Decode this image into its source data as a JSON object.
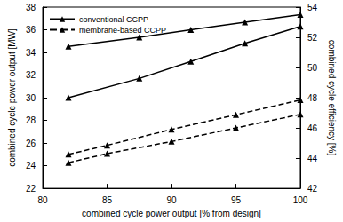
{
  "chart_data": {
    "type": "line",
    "x_label": "combined cycle power output [% from design]",
    "y_label": "combined cycle power output [MW]",
    "y2_label": "combined cycle efficiency [%]",
    "xlim": [
      80,
      100
    ],
    "xticks": [
      80,
      85,
      90,
      95,
      100
    ],
    "ylim": [
      22,
      38
    ],
    "yticks": [
      22,
      24,
      26,
      28,
      30,
      32,
      34,
      36,
      38
    ],
    "y2lim": [
      42,
      54
    ],
    "y2ticks": [
      42,
      44,
      46,
      48,
      50,
      52,
      54
    ],
    "grid": false,
    "legend": "upper left",
    "series": [
      {
        "name": "conventional CCPP",
        "color": "#000000",
        "marker": "triangle",
        "line_style": "solid",
        "x": [
          82,
          87.5,
          91.5,
          95.7,
          100
        ],
        "values": [
          30.0,
          31.7,
          33.2,
          34.8,
          36.3
        ]
      },
      {
        "name": "conventional CCPP",
        "color": "#000000",
        "marker": "triangle",
        "line_style": "solid",
        "axis": "y2",
        "x": [
          82,
          87.5,
          91.5,
          95.7,
          100
        ],
        "values": [
          51.4,
          52.0,
          52.5,
          53.0,
          53.5
        ]
      },
      {
        "name": "membrane-based CCPP",
        "color": "#000000",
        "marker": "triangle",
        "line_style": "dashed",
        "x": [
          82,
          85,
          90,
          95,
          100
        ],
        "values": [
          25.0,
          25.8,
          27.2,
          28.5,
          29.8
        ]
      },
      {
        "name": "membrane-based CCPP",
        "color": "#000000",
        "marker": "triangle",
        "line_style": "dashed",
        "axis": "y2",
        "x": [
          82,
          85,
          90,
          95,
          100
        ],
        "values": [
          43.7,
          44.3,
          45.1,
          46.0,
          46.9
        ]
      }
    ]
  }
}
